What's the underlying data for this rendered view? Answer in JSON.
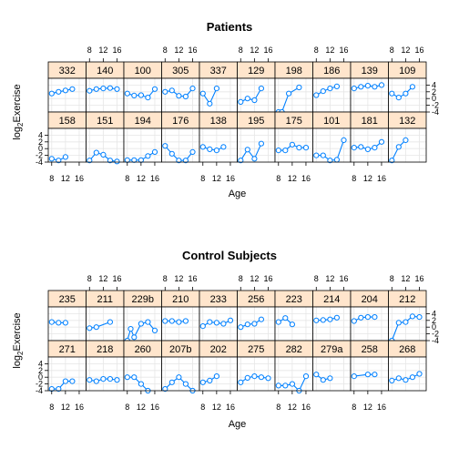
{
  "chart_data": [
    {
      "type": "line",
      "title": "Patients",
      "xlabel": "Age",
      "ylabel_main": "log",
      "ylabel_sub": "2",
      "ylabel_rest": "Exercise",
      "xlim": [
        7,
        18
      ],
      "ylim": [
        -4,
        6
      ],
      "x_ticks": [
        "8",
        "12",
        "16"
      ],
      "y_ticks": [
        "-4",
        "-2",
        "0",
        "2",
        "4"
      ],
      "grid": true,
      "colors": {
        "strip": "#ffe5cc",
        "line": "#0080ff",
        "grid": "#e6e6e6"
      },
      "panels": [
        {
          "id": "332",
          "x": [
            8,
            10,
            12,
            14
          ],
          "y": [
            1.5,
            2.0,
            2.4,
            2.8
          ]
        },
        {
          "id": "140",
          "x": [
            8,
            10,
            12,
            14,
            16
          ],
          "y": [
            2.3,
            2.8,
            3.0,
            3.1,
            2.8
          ]
        },
        {
          "id": "100",
          "x": [
            8,
            10,
            12,
            14,
            16
          ],
          "y": [
            1.5,
            0.9,
            1.0,
            0.3,
            2.8
          ]
        },
        {
          "id": "305",
          "x": [
            8,
            10,
            12,
            14,
            16
          ],
          "y": [
            2.0,
            2.4,
            0.8,
            0.6,
            3.0
          ]
        },
        {
          "id": "337",
          "x": [
            8,
            10,
            12
          ],
          "y": [
            1.5,
            -1.5,
            3.0
          ]
        },
        {
          "id": "129",
          "x": [
            8,
            10,
            12,
            14
          ],
          "y": [
            -1.0,
            0.0,
            -0.5,
            3.0
          ]
        },
        {
          "id": "198",
          "x": [
            8,
            9,
            11,
            14
          ],
          "y": [
            -4.0,
            -4.0,
            1.5,
            3.3
          ]
        },
        {
          "id": "186",
          "x": [
            8,
            10,
            12,
            14
          ],
          "y": [
            1.0,
            2.2,
            3.0,
            3.6
          ]
        },
        {
          "id": "139",
          "x": [
            8,
            10,
            12,
            14,
            16
          ],
          "y": [
            3.0,
            3.5,
            3.8,
            3.5,
            4.0
          ]
        },
        {
          "id": "109",
          "x": [
            8,
            10,
            12,
            14
          ],
          "y": [
            1.5,
            0.3,
            1.5,
            3.5
          ]
        },
        {
          "id": "158",
          "x": [
            8,
            10,
            12
          ],
          "y": [
            -3.0,
            -3.5,
            -2.5
          ]
        },
        {
          "id": "151",
          "x": [
            8,
            10,
            12,
            14,
            16
          ],
          "y": [
            -3.5,
            -1.2,
            -1.8,
            -3.5,
            -3.8
          ]
        },
        {
          "id": "194",
          "x": [
            8,
            10,
            12,
            14,
            16
          ],
          "y": [
            -3.4,
            -3.4,
            -3.4,
            -2.2,
            -1.0
          ]
        },
        {
          "id": "176",
          "x": [
            8,
            10,
            12,
            14,
            16
          ],
          "y": [
            0.8,
            -1.5,
            -3.5,
            -3.5,
            -1.0
          ]
        },
        {
          "id": "138",
          "x": [
            8,
            10,
            12,
            14
          ],
          "y": [
            0.5,
            -0.2,
            -0.5,
            0.5
          ]
        },
        {
          "id": "195",
          "x": [
            8,
            10,
            12,
            14
          ],
          "y": [
            -3.5,
            -0.3,
            -3.0,
            1.5
          ]
        },
        {
          "id": "175",
          "x": [
            8,
            10,
            12,
            14,
            16
          ],
          "y": [
            -0.5,
            -0.5,
            1.2,
            0.3,
            0.3
          ]
        },
        {
          "id": "101",
          "x": [
            8,
            10,
            12,
            14,
            16
          ],
          "y": [
            -2.0,
            -2.0,
            -3.5,
            -3.3,
            2.5
          ]
        },
        {
          "id": "181",
          "x": [
            8,
            10,
            12,
            14,
            16
          ],
          "y": [
            0.3,
            0.5,
            -0.2,
            0.3,
            2.0
          ]
        },
        {
          "id": "132",
          "x": [
            8,
            10,
            12
          ],
          "y": [
            -3.5,
            0.5,
            2.5
          ]
        }
      ]
    },
    {
      "type": "line",
      "title": "Control Subjects",
      "xlabel": "Age",
      "ylabel_main": "log",
      "ylabel_sub": "2",
      "ylabel_rest": "Exercise",
      "xlim": [
        7,
        18
      ],
      "ylim": [
        -4,
        6
      ],
      "x_ticks": [
        "8",
        "12",
        "16"
      ],
      "y_ticks": [
        "-4",
        "-2",
        "0",
        "2",
        "4"
      ],
      "grid": true,
      "colors": {
        "strip": "#ffe5cc",
        "line": "#0080ff",
        "grid": "#e6e6e6"
      },
      "panels": [
        {
          "id": "235",
          "x": [
            8,
            10,
            12
          ],
          "y": [
            1.5,
            1.3,
            1.3
          ]
        },
        {
          "id": "211",
          "x": [
            8,
            10,
            14
          ],
          "y": [
            -0.3,
            0.0,
            1.5
          ]
        },
        {
          "id": "229b",
          "x": [
            8,
            9,
            10,
            12,
            14,
            16
          ],
          "y": [
            -4.0,
            -0.5,
            -3.0,
            1.0,
            1.5,
            -1.0
          ]
        },
        {
          "id": "210",
          "x": [
            8,
            10,
            12,
            14
          ],
          "y": [
            1.8,
            1.8,
            1.5,
            1.8
          ]
        },
        {
          "id": "233",
          "x": [
            8,
            10,
            12,
            14,
            16
          ],
          "y": [
            0.3,
            1.5,
            1.3,
            1.0,
            2.0
          ]
        },
        {
          "id": "256",
          "x": [
            8,
            10,
            12,
            14
          ],
          "y": [
            0.0,
            0.8,
            1.0,
            2.3
          ]
        },
        {
          "id": "223",
          "x": [
            8,
            10,
            12
          ],
          "y": [
            1.5,
            2.7,
            0.8
          ]
        },
        {
          "id": "214",
          "x": [
            8,
            10,
            12,
            14
          ],
          "y": [
            2.0,
            2.1,
            2.3,
            2.8
          ]
        },
        {
          "id": "204",
          "x": [
            8,
            10,
            12,
            14
          ],
          "y": [
            1.8,
            2.8,
            3.0,
            3.0
          ]
        },
        {
          "id": "212",
          "x": [
            8,
            10,
            12,
            14,
            16
          ],
          "y": [
            -4.0,
            1.3,
            1.5,
            3.2,
            3.0
          ]
        },
        {
          "id": "271",
          "x": [
            8,
            10,
            12,
            14
          ],
          "y": [
            -3.5,
            -3.5,
            -1.2,
            -1.2
          ]
        },
        {
          "id": "218",
          "x": [
            8,
            10,
            12,
            14,
            16
          ],
          "y": [
            -0.8,
            -1.2,
            -0.5,
            -0.5,
            -0.8
          ]
        },
        {
          "id": "260",
          "x": [
            8,
            10,
            12,
            14
          ],
          "y": [
            0.0,
            0.0,
            -2.0,
            -4.0
          ]
        },
        {
          "id": "207b",
          "x": [
            8,
            10,
            12,
            14,
            16
          ],
          "y": [
            -3.5,
            -1.5,
            0.0,
            -2.0,
            -4.0
          ]
        },
        {
          "id": "202",
          "x": [
            8,
            10,
            12
          ],
          "y": [
            -1.5,
            -1.0,
            0.3
          ]
        },
        {
          "id": "275",
          "x": [
            8,
            10,
            12,
            14,
            16
          ],
          "y": [
            -1.5,
            -0.2,
            0.3,
            0.0,
            -0.3
          ]
        },
        {
          "id": "282",
          "x": [
            8,
            10,
            12,
            14,
            16
          ],
          "y": [
            -2.5,
            -2.5,
            -2.0,
            -4.0,
            0.3
          ]
        },
        {
          "id": "279a",
          "x": [
            8,
            10,
            12
          ],
          "y": [
            0.8,
            -0.8,
            -0.3
          ]
        },
        {
          "id": "258",
          "x": [
            8,
            12,
            14
          ],
          "y": [
            0.3,
            0.8,
            0.8
          ]
        },
        {
          "id": "268",
          "x": [
            8,
            10,
            12,
            14,
            16
          ],
          "y": [
            -1.0,
            -0.3,
            -0.8,
            0.0,
            1.0
          ]
        }
      ]
    }
  ]
}
